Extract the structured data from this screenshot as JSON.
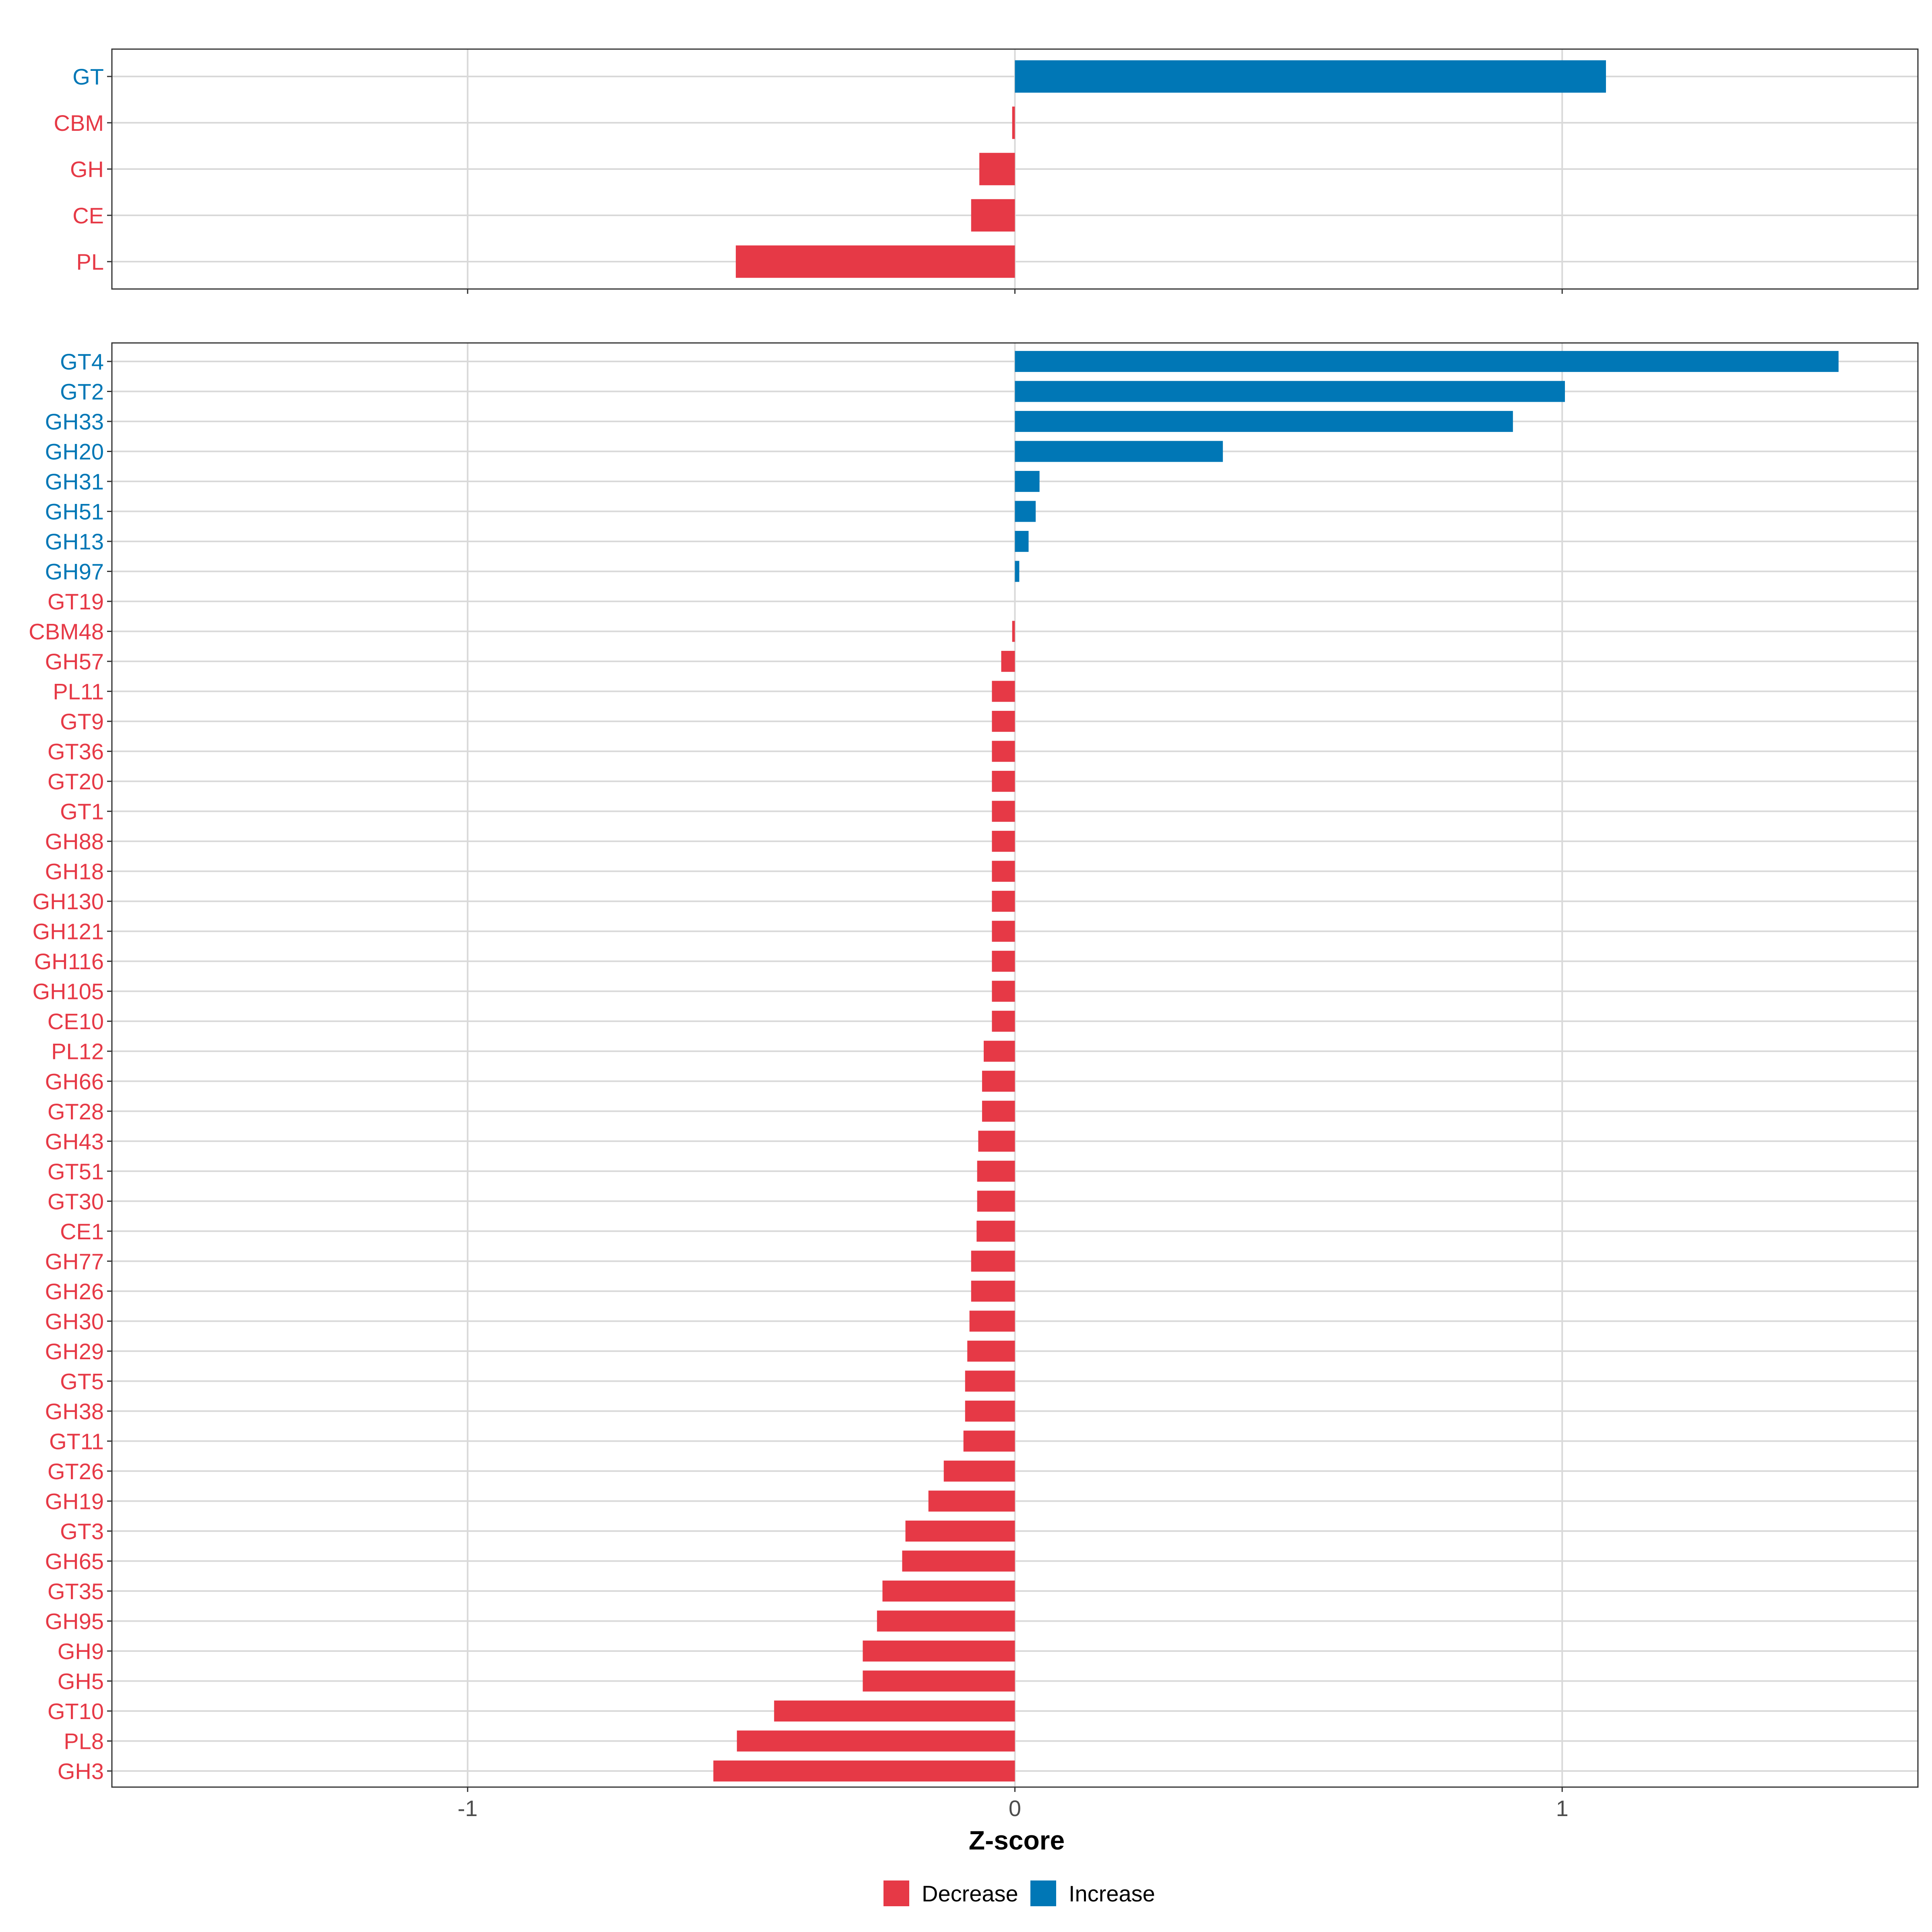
{
  "colors": {
    "decrease": "#E63946",
    "increase": "#0077B6",
    "grid": "#D9D9D9",
    "axis": "#333333",
    "tick_text": "#4D4D4D"
  },
  "chart_data": [
    {
      "type": "bar",
      "orientation": "horizontal",
      "panel": "top",
      "categories": [
        "GT",
        "CBM",
        "GH",
        "CE",
        "PL"
      ],
      "values": [
        1.08,
        -0.005,
        -0.065,
        -0.08,
        -0.51
      ],
      "xlim": [
        -1.65,
        1.65
      ],
      "xticks": [
        -1,
        0,
        1
      ],
      "show_x_tick_labels": false
    },
    {
      "type": "bar",
      "orientation": "horizontal",
      "panel": "bottom",
      "categories": [
        "GT4",
        "GT2",
        "GH33",
        "GH20",
        "GH31",
        "GH51",
        "GH13",
        "GH97",
        "GT19",
        "CBM48",
        "GH57",
        "PL11",
        "GT9",
        "GT36",
        "GT20",
        "GT1",
        "GH88",
        "GH18",
        "GH130",
        "GH121",
        "GH116",
        "GH105",
        "CE10",
        "PL12",
        "GH66",
        "GT28",
        "GH43",
        "GT51",
        "GT30",
        "CE1",
        "GH77",
        "GH26",
        "GH30",
        "GH29",
        "GT5",
        "GH38",
        "GT11",
        "GT26",
        "GH19",
        "GT3",
        "GH65",
        "GT35",
        "GH95",
        "GH9",
        "GH5",
        "GT10",
        "PL8",
        "GH3"
      ],
      "values": [
        1.505,
        1.005,
        0.91,
        0.38,
        0.045,
        0.038,
        0.025,
        0.008,
        0.0,
        -0.005,
        -0.025,
        -0.042,
        -0.042,
        -0.042,
        -0.042,
        -0.042,
        -0.042,
        -0.042,
        -0.042,
        -0.042,
        -0.042,
        -0.042,
        -0.042,
        -0.057,
        -0.06,
        -0.06,
        -0.067,
        -0.069,
        -0.069,
        -0.07,
        -0.08,
        -0.08,
        -0.083,
        -0.087,
        -0.091,
        -0.091,
        -0.094,
        -0.13,
        -0.158,
        -0.2,
        -0.206,
        -0.242,
        -0.252,
        -0.278,
        -0.278,
        -0.44,
        -0.508,
        -0.551
      ],
      "xlim": [
        -1.65,
        1.65
      ],
      "xticks": [
        -1,
        0,
        1
      ],
      "xtick_labels": [
        "-1",
        "0",
        "1"
      ],
      "xlabel": "Z-score"
    }
  ],
  "legend": {
    "position": "bottom",
    "items": [
      {
        "label": "Decrease",
        "color_key": "decrease"
      },
      {
        "label": "Increase",
        "color_key": "increase"
      }
    ]
  }
}
